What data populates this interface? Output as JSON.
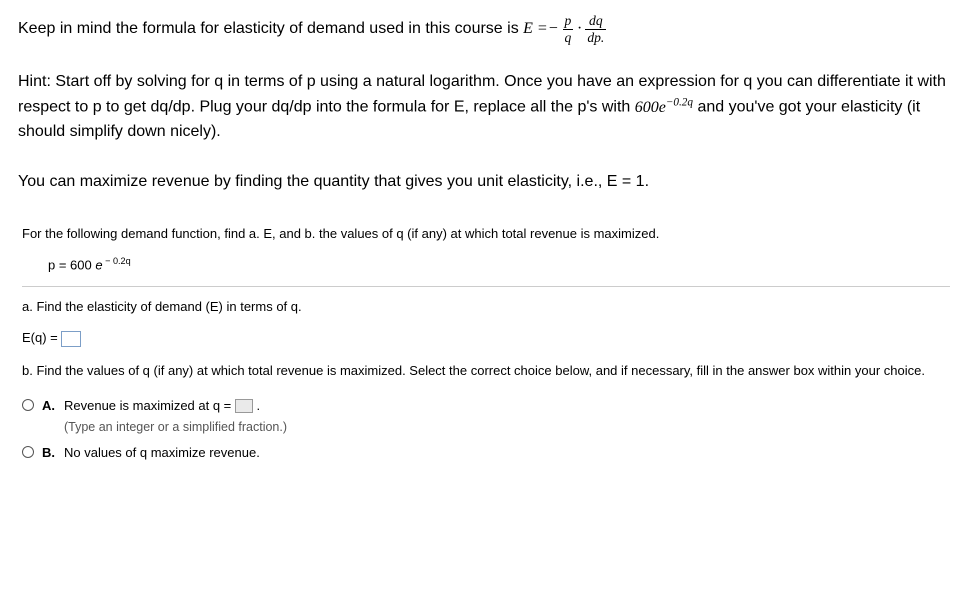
{
  "intro": {
    "prefix": "Keep in mind the formula for elasticity of demand used in this course is ",
    "E": "E",
    "eq": " =− ",
    "p": "p",
    "q": "q",
    "dot": " · ",
    "dq": "dq",
    "dp": "dp."
  },
  "hint": {
    "label": "Hint:  ",
    "t1": "Start off by solving for q in terms of p using a natural logarithm.  Once you have an expression for q you can differentiate it with respect to p to get dq/dp.  Plug your dq/dp into the formula for E, replace all the p's with  ",
    "coef": "600",
    "e": "e",
    "exp": "−0.2q",
    "t2": "  and you've got your elasticity (it should simplify down nicely)."
  },
  "revmax": "You can maximize revenue by finding the quantity that gives you unit elasticity, i.e., E = 1.",
  "problem": {
    "head": "For the following demand function, find a. E, and b. the values of q (if any) at which total revenue is maximized.",
    "eq_lhs": "p = 600 ",
    "eq_e": "e",
    "eq_exp": " − 0.2q",
    "a_text": "a. Find the elasticity of demand (E) in terms of q.",
    "a_lhs": "E(q) = ",
    "b_text": "b. Find the values of q (if any) at which total revenue is maximized. Select the correct choice below, and if necessary, fill in the answer box within your choice.",
    "choices": {
      "A": {
        "letter": "A.",
        "line1a": "Revenue is maximized at q = ",
        "line1b": " .",
        "note": "(Type an integer or a simplified fraction.)"
      },
      "B": {
        "letter": "B.",
        "text": "No values of q maximize revenue."
      }
    }
  }
}
